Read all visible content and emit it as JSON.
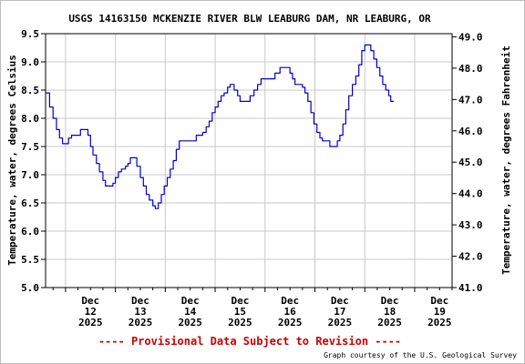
{
  "chart_data": {
    "type": "line",
    "title": "USGS 14163150 MCKENZIE RIVER BLW LEABURG DAM, NR LEABURG, OR",
    "ylabel": "Temperature, water, degrees Celsius",
    "ylabel_right": "Temperature, water, degrees Fahrenheit",
    "ylim": [
      5.0,
      9.5
    ],
    "y_ticks": [
      "9.5",
      "9.0",
      "8.5",
      "8.0",
      "7.5",
      "7.0",
      "6.5",
      "6.0",
      "5.5",
      "5.0"
    ],
    "y2lim": [
      41.0,
      49.1
    ],
    "y2_ticks": [
      "49.0",
      "48.0",
      "47.0",
      "46.0",
      "45.0",
      "44.0",
      "43.0",
      "42.0",
      "41.0"
    ],
    "xlim": [
      11.6,
      19.75
    ],
    "x_ticks": [
      {
        "day": 12,
        "month": "Dec",
        "date": "12",
        "year": "2025"
      },
      {
        "day": 13,
        "month": "Dec",
        "date": "13",
        "year": "2025"
      },
      {
        "day": 14,
        "month": "Dec",
        "date": "14",
        "year": "2025"
      },
      {
        "day": 15,
        "month": "Dec",
        "date": "15",
        "year": "2025"
      },
      {
        "day": 16,
        "month": "Dec",
        "date": "16",
        "year": "2025"
      },
      {
        "day": 17,
        "month": "Dec",
        "date": "17",
        "year": "2025"
      },
      {
        "day": 18,
        "month": "Dec",
        "date": "18",
        "year": "2025"
      },
      {
        "day": 19,
        "month": "Dec",
        "date": "19",
        "year": "2025"
      }
    ],
    "grid": true,
    "series": [
      {
        "color": "#0000cc",
        "points": [
          [
            11.6,
            8.45
          ],
          [
            11.68,
            8.2
          ],
          [
            11.75,
            8.0
          ],
          [
            11.82,
            7.8
          ],
          [
            11.88,
            7.65
          ],
          [
            11.94,
            7.55
          ],
          [
            12.0,
            7.55
          ],
          [
            12.06,
            7.65
          ],
          [
            12.12,
            7.7
          ],
          [
            12.18,
            7.7
          ],
          [
            12.25,
            7.7
          ],
          [
            12.3,
            7.8
          ],
          [
            12.4,
            7.8
          ],
          [
            12.45,
            7.7
          ],
          [
            12.5,
            7.5
          ],
          [
            12.55,
            7.35
          ],
          [
            12.62,
            7.2
          ],
          [
            12.68,
            7.05
          ],
          [
            12.75,
            6.9
          ],
          [
            12.8,
            6.8
          ],
          [
            12.88,
            6.8
          ],
          [
            12.95,
            6.85
          ],
          [
            13.0,
            6.95
          ],
          [
            13.06,
            7.05
          ],
          [
            13.12,
            7.1
          ],
          [
            13.2,
            7.15
          ],
          [
            13.25,
            7.2
          ],
          [
            13.3,
            7.3
          ],
          [
            13.38,
            7.3
          ],
          [
            13.43,
            7.15
          ],
          [
            13.5,
            6.95
          ],
          [
            13.56,
            6.8
          ],
          [
            13.62,
            6.65
          ],
          [
            13.68,
            6.55
          ],
          [
            13.75,
            6.45
          ],
          [
            13.8,
            6.4
          ],
          [
            13.86,
            6.5
          ],
          [
            13.92,
            6.65
          ],
          [
            13.98,
            6.8
          ],
          [
            14.04,
            6.95
          ],
          [
            14.1,
            7.1
          ],
          [
            14.16,
            7.25
          ],
          [
            14.22,
            7.45
          ],
          [
            14.28,
            7.6
          ],
          [
            14.4,
            7.6
          ],
          [
            14.55,
            7.6
          ],
          [
            14.62,
            7.7
          ],
          [
            14.75,
            7.75
          ],
          [
            14.82,
            7.85
          ],
          [
            14.88,
            7.95
          ],
          [
            14.94,
            8.1
          ],
          [
            15.0,
            8.2
          ],
          [
            15.06,
            8.3
          ],
          [
            15.12,
            8.4
          ],
          [
            15.18,
            8.45
          ],
          [
            15.25,
            8.55
          ],
          [
            15.3,
            8.6
          ],
          [
            15.38,
            8.5
          ],
          [
            15.45,
            8.4
          ],
          [
            15.5,
            8.3
          ],
          [
            15.62,
            8.3
          ],
          [
            15.7,
            8.4
          ],
          [
            15.78,
            8.5
          ],
          [
            15.85,
            8.6
          ],
          [
            15.92,
            8.7
          ],
          [
            16.1,
            8.7
          ],
          [
            16.2,
            8.8
          ],
          [
            16.3,
            8.9
          ],
          [
            16.45,
            8.9
          ],
          [
            16.5,
            8.8
          ],
          [
            16.55,
            8.7
          ],
          [
            16.6,
            8.6
          ],
          [
            16.7,
            8.6
          ],
          [
            16.75,
            8.55
          ],
          [
            16.8,
            8.45
          ],
          [
            16.86,
            8.3
          ],
          [
            16.92,
            8.1
          ],
          [
            16.98,
            7.9
          ],
          [
            17.04,
            7.75
          ],
          [
            17.1,
            7.65
          ],
          [
            17.15,
            7.6
          ],
          [
            17.25,
            7.6
          ],
          [
            17.3,
            7.5
          ],
          [
            17.4,
            7.5
          ],
          [
            17.45,
            7.6
          ],
          [
            17.5,
            7.7
          ],
          [
            17.56,
            7.9
          ],
          [
            17.62,
            8.15
          ],
          [
            17.68,
            8.4
          ],
          [
            17.75,
            8.6
          ],
          [
            17.82,
            8.75
          ],
          [
            17.88,
            8.95
          ],
          [
            17.94,
            9.2
          ],
          [
            18.0,
            9.3
          ],
          [
            18.08,
            9.3
          ],
          [
            18.12,
            9.2
          ],
          [
            18.18,
            9.05
          ],
          [
            18.24,
            8.9
          ],
          [
            18.3,
            8.75
          ],
          [
            18.36,
            8.6
          ],
          [
            18.42,
            8.5
          ],
          [
            18.48,
            8.4
          ],
          [
            18.52,
            8.3
          ],
          [
            18.58,
            8.3
          ]
        ]
      }
    ],
    "annotation": "---- Provisional Data Subject to Revision ----",
    "credit": "Graph courtesy of the U.S. Geological Survey"
  }
}
